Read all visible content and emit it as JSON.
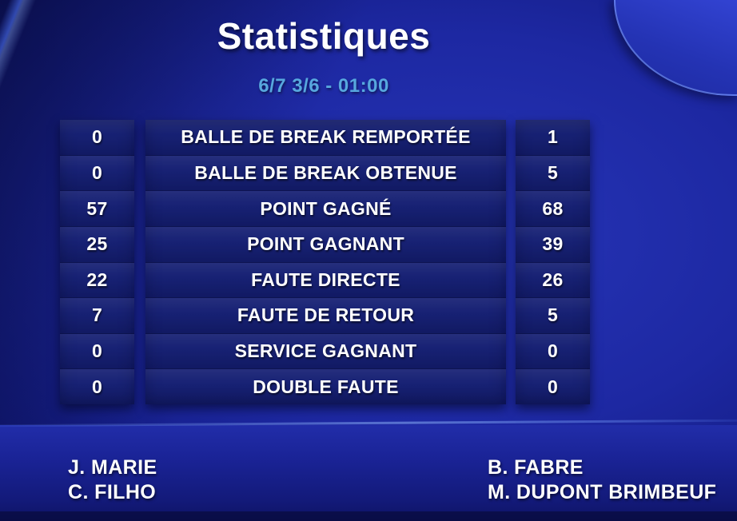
{
  "header": {
    "title": "Statistiques",
    "score_line": "6/7 3/6 - 01:00"
  },
  "stats": {
    "rows": [
      {
        "left": "0",
        "label": "BALLE DE BREAK REMPORTÉE",
        "right": "1"
      },
      {
        "left": "0",
        "label": "BALLE DE BREAK OBTENUE",
        "right": "5"
      },
      {
        "left": "57",
        "label": "POINT GAGNÉ",
        "right": "68"
      },
      {
        "left": "25",
        "label": "POINT GAGNANT",
        "right": "39"
      },
      {
        "left": "22",
        "label": "FAUTE DIRECTE",
        "right": "26"
      },
      {
        "left": "7",
        "label": "FAUTE DE RETOUR",
        "right": "5"
      },
      {
        "left": "0",
        "label": "SERVICE GAGNANT",
        "right": "0"
      },
      {
        "left": "0",
        "label": "DOUBLE FAUTE",
        "right": "0"
      }
    ]
  },
  "teams": {
    "left": [
      "J. MARIE",
      "C. FILHO"
    ],
    "right": [
      "B. FABRE",
      "M. DUPONT BRIMBEUF"
    ]
  },
  "colors": {
    "subtitle_accent": "#57a7de",
    "background_blue": "#1d28a2",
    "panel_blue": "#151f73",
    "text": "#ffffff"
  },
  "chart_data": {
    "type": "table",
    "title": "Statistiques",
    "subtitle": "6/7 3/6 - 01:00",
    "categories": [
      "BALLE DE BREAK REMPORTÉE",
      "BALLE DE BREAK OBTENUE",
      "POINT GAGNÉ",
      "POINT GAGNANT",
      "FAUTE DIRECTE",
      "FAUTE DE RETOUR",
      "SERVICE GAGNANT",
      "DOUBLE FAUTE"
    ],
    "series": [
      {
        "name": "J. MARIE / C. FILHO",
        "values": [
          0,
          0,
          57,
          25,
          22,
          7,
          0,
          0
        ]
      },
      {
        "name": "B. FABRE / M. DUPONT BRIMBEUF",
        "values": [
          1,
          5,
          68,
          39,
          26,
          5,
          0,
          0
        ]
      }
    ],
    "layout": "left column = team 1 values, center column = stat labels, right column = team 2 values"
  }
}
